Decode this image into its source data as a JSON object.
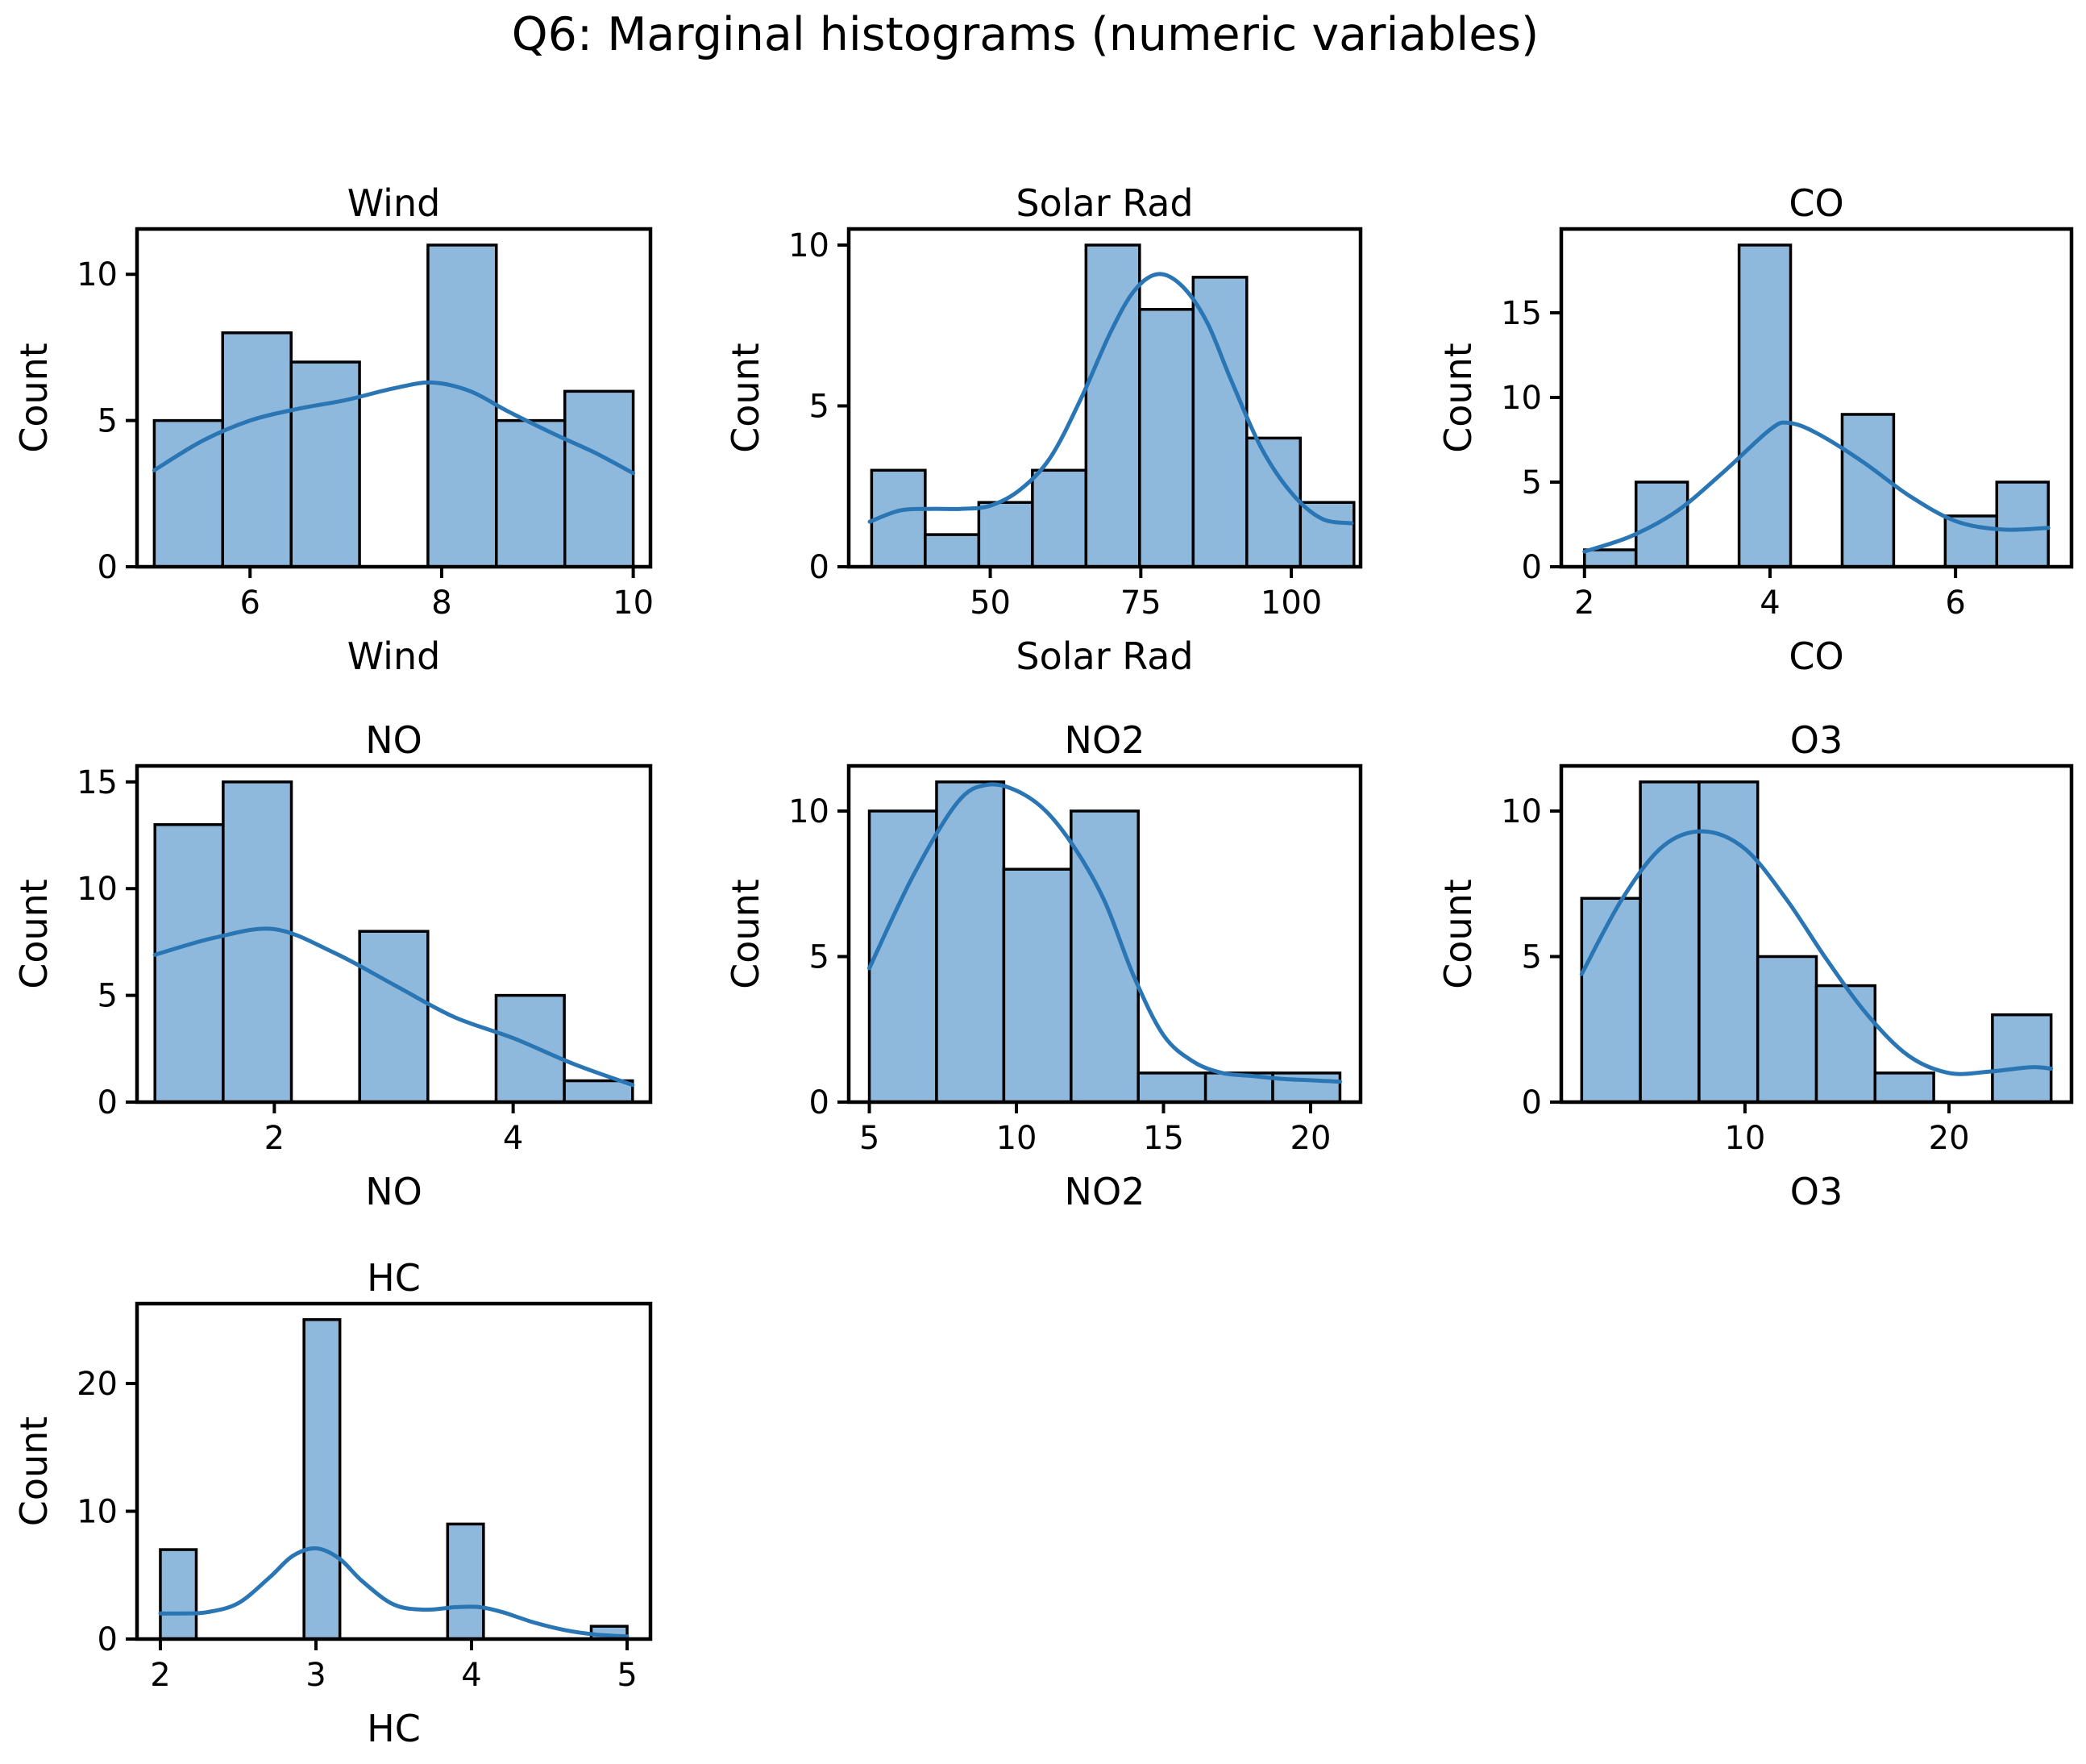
{
  "figure": {
    "title": "Q6: Marginal histograms (numeric variables)",
    "bar_color": "#8FB9DC",
    "kde_color": "#2A76B5"
  },
  "chart_data": [
    {
      "type": "bar",
      "title": "Wind",
      "xlabel": "Wind",
      "ylabel": "Count",
      "xlim": [
        4.82,
        10.18
      ],
      "ylim": [
        0,
        11.55
      ],
      "xticks": [
        6,
        8,
        10
      ],
      "yticks": [
        0,
        5,
        10
      ],
      "bin_edges": [
        5,
        5.714,
        6.429,
        7.143,
        7.857,
        8.571,
        9.286,
        10
      ],
      "values": [
        5,
        8,
        7,
        0,
        11,
        5,
        6
      ],
      "kde": [
        [
          5,
          3.3
        ],
        [
          5.5,
          4.3
        ],
        [
          6,
          5.0
        ],
        [
          6.5,
          5.4
        ],
        [
          7,
          5.7
        ],
        [
          7.5,
          6.1
        ],
        [
          7.9,
          6.3
        ],
        [
          8.3,
          6.0
        ],
        [
          8.7,
          5.3
        ],
        [
          9.2,
          4.5
        ],
        [
          9.6,
          3.9
        ],
        [
          10,
          3.2
        ]
      ]
    },
    {
      "type": "bar",
      "title": "Solar Rad",
      "xlabel": "Solar Rad",
      "ylabel": "Count",
      "xlim": [
        26.5,
        111.5
      ],
      "ylim": [
        0,
        10.5
      ],
      "xticks": [
        50,
        75,
        100
      ],
      "yticks": [
        0,
        5,
        10
      ],
      "bin_edges": [
        30.3,
        39.2,
        48.1,
        57.0,
        65.9,
        74.8,
        83.7,
        92.6,
        101.5,
        110.4
      ],
      "values": [
        3,
        1,
        2,
        3,
        10,
        8,
        9,
        4,
        2
      ],
      "kde": [
        [
          30,
          1.4
        ],
        [
          35,
          1.75
        ],
        [
          40,
          1.8
        ],
        [
          45,
          1.8
        ],
        [
          50,
          1.9
        ],
        [
          55,
          2.4
        ],
        [
          60,
          3.4
        ],
        [
          65,
          5.2
        ],
        [
          70,
          7.3
        ],
        [
          74,
          8.6
        ],
        [
          78,
          9.1
        ],
        [
          82,
          8.7
        ],
        [
          86,
          7.6
        ],
        [
          90,
          5.8
        ],
        [
          95,
          3.7
        ],
        [
          100,
          2.3
        ],
        [
          105,
          1.5
        ],
        [
          110,
          1.35
        ]
      ]
    },
    {
      "type": "bar",
      "title": "CO",
      "xlabel": "CO",
      "ylabel": "Count",
      "xlim": [
        1.75,
        7.25
      ],
      "ylim": [
        0,
        19.95
      ],
      "xticks": [
        2,
        4,
        6
      ],
      "yticks": [
        0,
        5,
        10,
        15
      ],
      "bin_edges": [
        2,
        2.5556,
        3.1111,
        3.6667,
        4.2222,
        4.7778,
        5.3333,
        5.8889,
        6.4444,
        7
      ],
      "values": [
        1,
        5,
        0,
        19,
        0,
        9,
        0,
        3,
        5
      ],
      "kde": [
        [
          2,
          0.9
        ],
        [
          2.5,
          1.8
        ],
        [
          3,
          3.3
        ],
        [
          3.5,
          5.6
        ],
        [
          4,
          8.1
        ],
        [
          4.2,
          8.5
        ],
        [
          4.5,
          7.9
        ],
        [
          5,
          6.2
        ],
        [
          5.5,
          4.2
        ],
        [
          6,
          2.7
        ],
        [
          6.5,
          2.2
        ],
        [
          7,
          2.3
        ]
      ]
    },
    {
      "type": "bar",
      "title": "NO",
      "xlabel": "NO",
      "ylabel": "Count",
      "xlim": [
        0.85,
        5.15
      ],
      "ylim": [
        0,
        15.75
      ],
      "xticks": [
        2,
        4
      ],
      "yticks": [
        0,
        5,
        10,
        15
      ],
      "bin_edges": [
        1,
        1.5714,
        2.1429,
        2.7143,
        3.2857,
        3.8571,
        4.4286,
        5
      ],
      "values": [
        13,
        15,
        0,
        8,
        0,
        5,
        1
      ],
      "kde": [
        [
          1,
          6.9
        ],
        [
          1.5,
          7.7
        ],
        [
          2,
          8.1
        ],
        [
          2.5,
          7.0
        ],
        [
          3,
          5.5
        ],
        [
          3.5,
          4.0
        ],
        [
          4,
          3.0
        ],
        [
          4.5,
          1.8
        ],
        [
          5,
          0.8
        ]
      ]
    },
    {
      "type": "bar",
      "title": "NO2",
      "xlabel": "NO2",
      "ylabel": "Count",
      "xlim": [
        4.3,
        21.7
      ],
      "ylim": [
        0,
        11.55
      ],
      "xticks": [
        5,
        10,
        15,
        20
      ],
      "yticks": [
        0,
        5,
        10
      ],
      "bin_edges": [
        5,
        7.2857,
        9.5714,
        11.8571,
        14.1429,
        16.4286,
        18.7143,
        21
      ],
      "values": [
        10,
        11,
        8,
        10,
        1,
        1,
        1
      ],
      "kde": [
        [
          5,
          4.6
        ],
        [
          6.5,
          7.8
        ],
        [
          8,
          10.3
        ],
        [
          9,
          10.9
        ],
        [
          10,
          10.7
        ],
        [
          11,
          10.0
        ],
        [
          12,
          8.7
        ],
        [
          13,
          6.9
        ],
        [
          14,
          4.3
        ],
        [
          15,
          2.3
        ],
        [
          16,
          1.4
        ],
        [
          17,
          1.0
        ],
        [
          18,
          0.9
        ],
        [
          19,
          0.8
        ],
        [
          20,
          0.75
        ],
        [
          21,
          0.7
        ]
      ]
    },
    {
      "type": "bar",
      "title": "O3",
      "xlabel": "O3",
      "ylabel": "Count",
      "xlim": [
        1,
        26
      ],
      "ylim": [
        0,
        11.55
      ],
      "xticks": [
        10,
        20
      ],
      "yticks": [
        0,
        5,
        10
      ],
      "bin_edges": [
        2,
        4.875,
        7.75,
        10.625,
        13.5,
        16.375,
        19.25,
        22.125,
        25
      ],
      "values": [
        7,
        11,
        11,
        5,
        4,
        1,
        0,
        3
      ],
      "kde": [
        [
          2,
          4.4
        ],
        [
          4,
          7.0
        ],
        [
          6,
          8.8
        ],
        [
          8,
          9.3
        ],
        [
          10,
          8.7
        ],
        [
          12,
          7.0
        ],
        [
          14,
          4.9
        ],
        [
          16,
          3.0
        ],
        [
          18,
          1.6
        ],
        [
          20,
          1.0
        ],
        [
          22,
          1.05
        ],
        [
          24,
          1.2
        ],
        [
          25,
          1.15
        ]
      ]
    },
    {
      "type": "bar",
      "title": "HC",
      "xlabel": "HC",
      "ylabel": "Count",
      "xlim": [
        1.85,
        5.15
      ],
      "ylim": [
        0,
        26.25
      ],
      "xticks": [
        2,
        3,
        4,
        5
      ],
      "yticks": [
        0,
        10,
        20
      ],
      "bin_edges": [
        2,
        2.2308,
        2.4615,
        2.6923,
        2.9231,
        3.1538,
        3.3846,
        3.6154,
        3.8462,
        4.0769,
        4.3077,
        4.5385,
        4.7692,
        5
      ],
      "values": [
        7,
        0,
        0,
        0,
        25,
        0,
        0,
        0,
        9,
        0,
        0,
        0,
        1
      ],
      "kde": [
        [
          2,
          2.0
        ],
        [
          2.15,
          2.0
        ],
        [
          2.3,
          2.1
        ],
        [
          2.5,
          2.8
        ],
        [
          2.7,
          4.8
        ],
        [
          2.85,
          6.5
        ],
        [
          3,
          7.1
        ],
        [
          3.15,
          6.3
        ],
        [
          3.3,
          4.5
        ],
        [
          3.5,
          2.7
        ],
        [
          3.7,
          2.3
        ],
        [
          3.9,
          2.5
        ],
        [
          4.05,
          2.5
        ],
        [
          4.2,
          2.1
        ],
        [
          4.4,
          1.3
        ],
        [
          4.6,
          0.7
        ],
        [
          4.8,
          0.35
        ],
        [
          5,
          0.2
        ]
      ]
    }
  ]
}
